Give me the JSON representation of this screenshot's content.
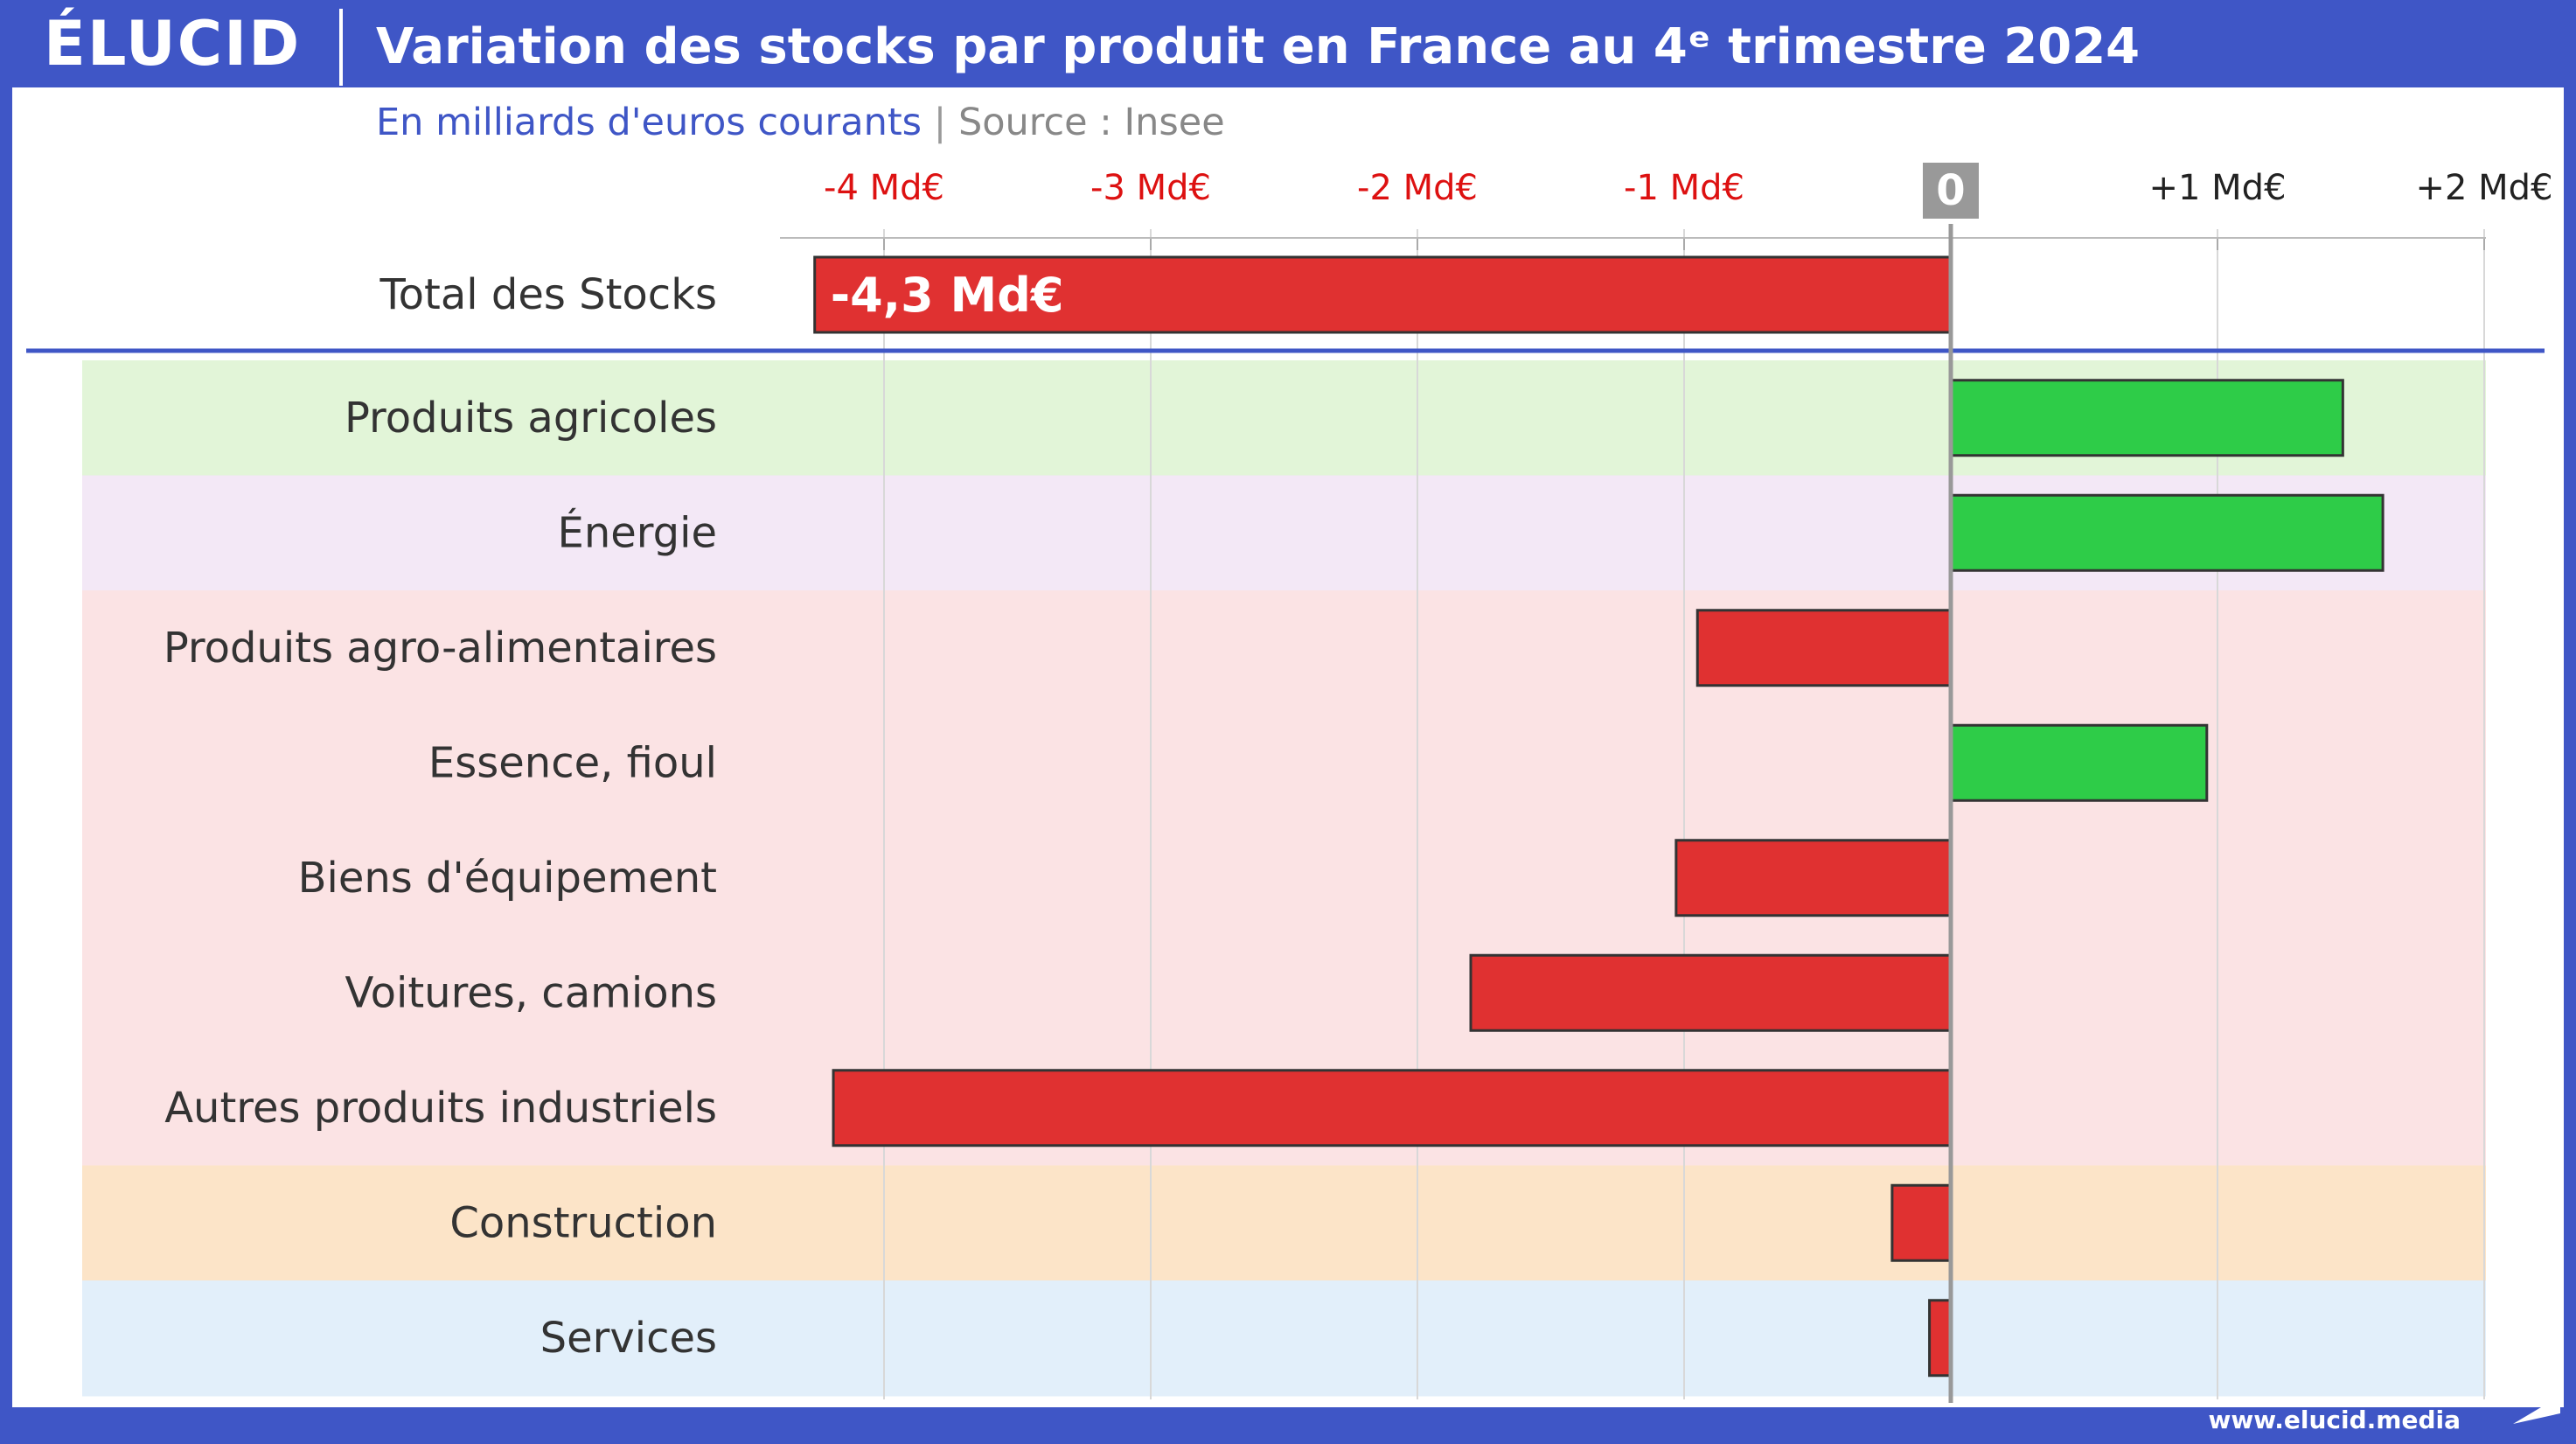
{
  "header": {
    "logo": "ÉLUCID",
    "title": "Variation des stocks par produit en France au 4ᵉ trimestre 2024",
    "subtitle_unit": "En milliards d'euros courants",
    "subtitle_sep": "|",
    "subtitle_source": "Source : Insee"
  },
  "footer": {
    "url": "www.elucid.media"
  },
  "colors": {
    "frame": "#3f56c6",
    "negative": "#e03131",
    "positive": "#2ecc48",
    "neg_tick": "#dd1111",
    "bands": {
      "agricole": "#e2f5d8",
      "energie": "#f3e8f6",
      "industrie": "#fbe3e4",
      "construction": "#fce4c8",
      "services": "#e2effa"
    }
  },
  "chart_data": {
    "type": "bar",
    "orientation": "horizontal",
    "unit": "Md€",
    "xlim": [
      -4.3,
      2.0
    ],
    "ticks": [
      {
        "value": -4,
        "label": "-4 Md€"
      },
      {
        "value": -3,
        "label": "-3 Md€"
      },
      {
        "value": -2,
        "label": "-2 Md€"
      },
      {
        "value": -1,
        "label": "-1 Md€"
      },
      {
        "value": 0,
        "label": "0"
      },
      {
        "value": 1,
        "label": "+1 Md€"
      },
      {
        "value": 2,
        "label": "+2 Md€"
      }
    ],
    "total": {
      "label": "Total des Stocks",
      "value": -4.26,
      "value_label": "-4,3 Md€"
    },
    "categories": [
      "Produits agricoles",
      "Énergie",
      "Produits agro-alimentaires",
      "Essence, fioul",
      "Biens d'équipement",
      "Voitures, camions",
      "Autres produits industriels",
      "Construction",
      "Services"
    ],
    "values": [
      1.47,
      1.62,
      -0.95,
      0.96,
      -1.03,
      -1.8,
      -4.19,
      -0.22,
      -0.08
    ],
    "groups": [
      "agricole",
      "energie",
      "industrie",
      "industrie",
      "industrie",
      "industrie",
      "industrie",
      "construction",
      "services"
    ],
    "grid": true
  }
}
